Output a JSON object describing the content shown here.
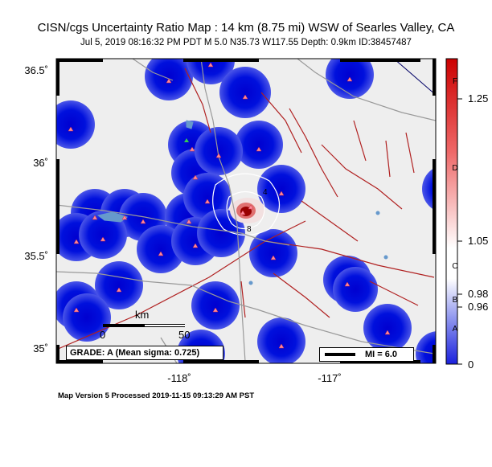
{
  "title": "CISN/cgs Uncertainty Ratio Map : 14  km (8.75 mi) WSW of Searles Valley, CA",
  "subtitle": "Jul  5, 2019 08:16:32 PM PDT   M 5.0   N35.73 W117.55   Depth: 0.9km   ID:38457487",
  "footer": "Map Version 5 Processed 2019-11-15 09:13:29 AM PST",
  "lat_labels": [
    "36.5˚",
    "36˚",
    "35.5˚",
    "35˚"
  ],
  "lon_labels": [
    "-118˚",
    "-117˚"
  ],
  "grade_box": "GRADE: A (Mean sigma: 0.725)",
  "mi_box": "MI = 6.0",
  "scale_bar": {
    "unit": "km",
    "min": "0",
    "max": "50"
  },
  "colorbar": {
    "ticks": [
      "1.25",
      "1.05",
      "0.98",
      "0.96",
      "0"
    ],
    "grades": [
      "F",
      "D",
      "C",
      "B",
      "A"
    ],
    "colors": {
      "top": "#cc0000",
      "mid": "#ffffff",
      "bottom": "#0000dd"
    }
  },
  "contour_labels": [
    "4",
    "8"
  ],
  "colors": {
    "land": "#eeeeee",
    "station_fill": "#0000dd",
    "fault": "#b02020",
    "road": "#999999",
    "water": "#6699cc"
  }
}
